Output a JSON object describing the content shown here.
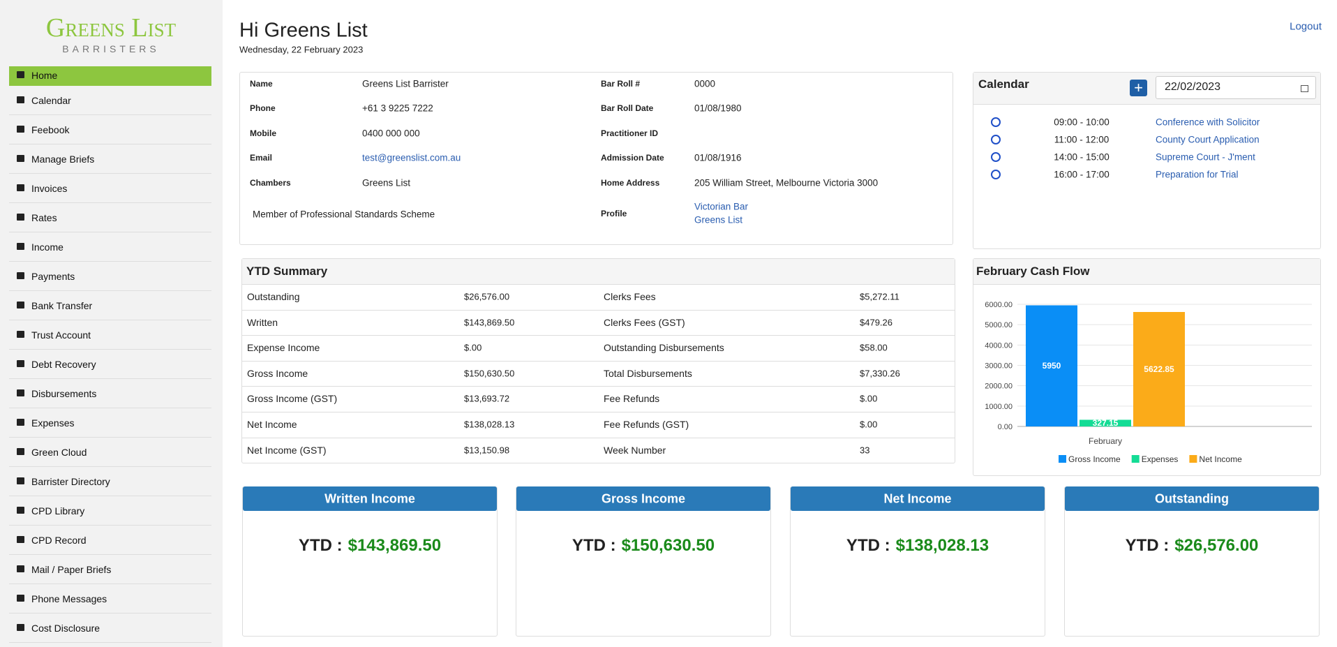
{
  "logo": {
    "title": "Greens List",
    "subtitle": "BARRISTERS"
  },
  "nav": [
    "Home",
    "Calendar",
    "Feebook",
    "Manage Briefs",
    "Invoices",
    "Rates",
    "Income",
    "Payments",
    "Bank Transfer",
    "Trust Account",
    "Debt Recovery",
    "Disbursements",
    "Expenses",
    "Green Cloud",
    "Barrister Directory",
    "CPD Library",
    "CPD Record",
    "Mail / Paper Briefs",
    "Phone Messages",
    "Cost Disclosure"
  ],
  "header": {
    "greeting": "Hi Greens List",
    "date": "Wednesday, 22 February 2023",
    "logout": "Logout"
  },
  "profile": {
    "fields": [
      {
        "label": "Name",
        "value": "Greens List Barrister"
      },
      {
        "label": "Phone",
        "value": "+61 3 9225 7222"
      },
      {
        "label": "Mobile",
        "value": "0400 000 000"
      },
      {
        "label": "Email",
        "value": "test@greenslist.com.au"
      },
      {
        "label": "Chambers",
        "value": "Greens List"
      }
    ],
    "fields_right": [
      {
        "label": "Bar Roll #",
        "value": "0000"
      },
      {
        "label": "Bar Roll Date",
        "value": "01/08/1980"
      },
      {
        "label": "Practitioner ID"
      },
      {
        "label": "Admission Date",
        "value": "01/08/1916"
      },
      {
        "label": "Home Address",
        "value": "205 William Street, Melbourne Victoria 3000"
      }
    ],
    "membership": "Member of Professional Standards Scheme",
    "profile_label": "Profile",
    "profile_links": [
      "Victorian Bar",
      "Greens List"
    ]
  },
  "calendar": {
    "title": "Calendar",
    "date": "22/02/2023",
    "events": [
      {
        "time": "09:00 - 10:00",
        "title": "Conference with Solicitor"
      },
      {
        "time": "11:00 - 12:00",
        "title": "County Court Application"
      },
      {
        "time": "14:00 - 15:00",
        "title": "Supreme Court - J'ment"
      },
      {
        "time": "16:00 - 17:00",
        "title": "Preparation for Trial"
      }
    ]
  },
  "ytd_summary": {
    "title": "YTD Summary",
    "rows": [
      [
        "Outstanding",
        "$26,576.00",
        "Clerks Fees",
        "$5,272.11"
      ],
      [
        "Written",
        "$143,869.50",
        "Clerks Fees (GST)",
        "$479.26"
      ],
      [
        "Expense Income",
        "$.00",
        "Outstanding Disbursements",
        "$58.00"
      ],
      [
        "Gross Income",
        "$150,630.50",
        "Total Disbursements",
        "$7,330.26"
      ],
      [
        "Gross Income (GST)",
        "$13,693.72",
        "Fee Refunds",
        "$.00"
      ],
      [
        "Net Income",
        "$138,028.13",
        "Fee Refunds (GST)",
        "$.00"
      ],
      [
        "Net Income (GST)",
        "$13,150.98",
        "Week Number",
        "33"
      ]
    ]
  },
  "cash_flow_chart": {
    "type": "bar",
    "title": "February Cash Flow",
    "categories": [
      "February"
    ],
    "series": [
      {
        "name": "Gross Income",
        "color": "#0a8ef6",
        "values": [
          5950
        ]
      },
      {
        "name": "Expenses",
        "color": "#14dc95",
        "values": [
          327.15
        ]
      },
      {
        "name": "Net Income",
        "color": "#fbab19",
        "values": [
          5622.85
        ]
      }
    ],
    "ylim": [
      0,
      6000
    ],
    "yticks": [
      {
        "value": 0,
        "label": "0.00"
      },
      {
        "value": 1000,
        "label": "1000.00"
      },
      {
        "value": 2000,
        "label": "2000.00"
      },
      {
        "value": 3000,
        "label": "3000.00"
      },
      {
        "value": 4000,
        "label": "4000.00"
      },
      {
        "value": 5000,
        "label": "5000.00"
      },
      {
        "value": 6000,
        "label": "6000.00"
      }
    ],
    "grid": true,
    "legend": "bottom"
  },
  "cards": [
    {
      "title": "Written Income",
      "prefix": "YTD :",
      "value": "$143,869.50"
    },
    {
      "title": "Gross Income",
      "prefix": "YTD :",
      "value": "$150,630.50"
    },
    {
      "title": "Net Income",
      "prefix": "YTD :",
      "value": "$138,028.13"
    },
    {
      "title": "Outstanding",
      "prefix": "YTD :",
      "value": "$26,576.00"
    }
  ]
}
